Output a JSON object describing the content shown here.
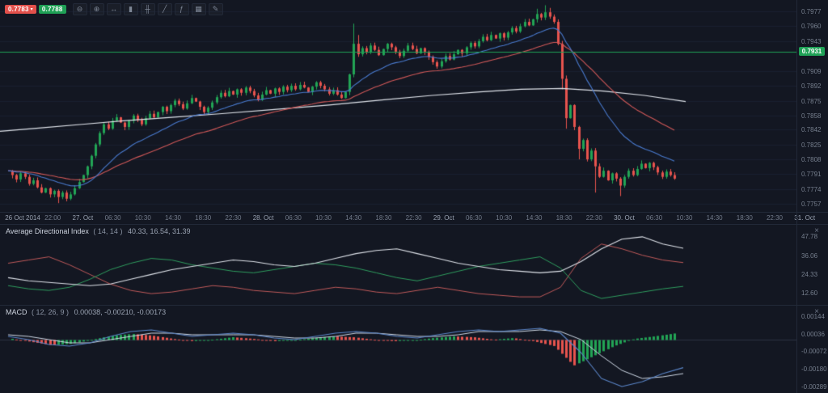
{
  "toolbar": {
    "sell_price": "0.7783",
    "sell_caret": "▾",
    "buy_price": "0.7788",
    "sell_color": "#e2504b",
    "buy_color": "#1fa055",
    "icons": [
      {
        "name": "zoom-out-icon",
        "glyph": "⊖"
      },
      {
        "name": "zoom-in-icon",
        "glyph": "⊕"
      },
      {
        "name": "pan-icon",
        "glyph": "↔"
      },
      {
        "name": "candlestick-chart-icon",
        "glyph": "▮"
      },
      {
        "name": "ohlc-bars-icon",
        "glyph": "╫"
      },
      {
        "name": "line-chart-icon",
        "glyph": "╱"
      },
      {
        "name": "indicators-icon",
        "glyph": "ƒ"
      },
      {
        "name": "grid-icon",
        "glyph": "▦"
      },
      {
        "name": "annotate-icon",
        "glyph": "✎"
      }
    ]
  },
  "price_axis": {
    "labels": [
      "0.7977",
      "0.7960",
      "0.7943",
      "0.7909",
      "0.7892",
      "0.7875",
      "0.7858",
      "0.7842",
      "0.7825",
      "0.7808",
      "0.7791",
      "0.7774",
      "0.7757"
    ],
    "active_line_label": "0.7931"
  },
  "time_axis": {
    "labels": [
      "26 Oct 2014",
      "22:00",
      "27. Oct",
      "06:30",
      "10:30",
      "14:30",
      "18:30",
      "22:30",
      "28. Oct",
      "06:30",
      "10:30",
      "14:30",
      "18:30",
      "22:30",
      "29. Oct",
      "06:30",
      "10:30",
      "14:30",
      "18:30",
      "22:30",
      "30. Oct",
      "06:30",
      "10:30",
      "14:30",
      "18:30",
      "22:30",
      "31. Oct"
    ],
    "day_label_indices": [
      0,
      2,
      8,
      14,
      20,
      26
    ]
  },
  "panels": {
    "adx": {
      "name": "Average Directional Index",
      "params": "( 14, 14 )",
      "values": "40.33, 16.54, 31.39",
      "close_label": "×"
    },
    "macd": {
      "name": "MACD",
      "params": "( 12, 26, 9 )",
      "values": "0.00038, -0.00210, -0.00173",
      "close_label": "×"
    }
  },
  "colors": {
    "bull": "#22a455",
    "bear": "#e8544e",
    "ma_fast": "#4a7bd0",
    "ma_slow": "#d05858",
    "ma_long": "#dfe3ea",
    "active_line": "#1fa257",
    "adx_line": "#dfe3ea",
    "di_plus": "#2f9e5f",
    "di_minus": "#c05a5a",
    "macd_line": "#5b86c9",
    "signal_line": "#cfd9e6",
    "grid": "#1a2130",
    "zero_line": "#2b3342"
  },
  "chart_data": [
    {
      "type": "candlestick",
      "ylim": [
        0.7748,
        0.799
      ],
      "active_price_line": 0.7931,
      "closes": [
        0.7795,
        0.779,
        0.7785,
        0.7792,
        0.7788,
        0.778,
        0.7784,
        0.7776,
        0.777,
        0.7775,
        0.7768,
        0.7772,
        0.7765,
        0.777,
        0.7763,
        0.7768,
        0.7775,
        0.7782,
        0.779,
        0.78,
        0.7812,
        0.7825,
        0.7838,
        0.7848,
        0.7843,
        0.7852,
        0.7856,
        0.785,
        0.7845,
        0.7852,
        0.7858,
        0.7853,
        0.7848,
        0.7855,
        0.786,
        0.7856,
        0.7862,
        0.7868,
        0.7863,
        0.787,
        0.7875,
        0.7871,
        0.7866,
        0.7872,
        0.7878,
        0.7874,
        0.7868,
        0.7862,
        0.7867,
        0.7873,
        0.7879,
        0.7884,
        0.788,
        0.7886,
        0.7882,
        0.7888,
        0.7884,
        0.789,
        0.7886,
        0.7881,
        0.7876,
        0.7882,
        0.7887,
        0.7883,
        0.7889,
        0.7885,
        0.7891,
        0.7887,
        0.7892,
        0.7888,
        0.7893,
        0.789,
        0.7885,
        0.7891,
        0.7896,
        0.7892,
        0.7888,
        0.7883,
        0.7887,
        0.7882,
        0.7878,
        0.7885,
        0.7905,
        0.794,
        0.7928,
        0.7935,
        0.793,
        0.7938,
        0.7933,
        0.7927,
        0.7934,
        0.794,
        0.7936,
        0.7931,
        0.7926,
        0.7932,
        0.7938,
        0.7934,
        0.7929,
        0.7935,
        0.7931,
        0.7925,
        0.7919,
        0.7914,
        0.792,
        0.7926,
        0.7922,
        0.7928,
        0.7933,
        0.7929,
        0.7936,
        0.7941,
        0.7937,
        0.7943,
        0.7948,
        0.7944,
        0.795,
        0.7946,
        0.7952,
        0.7947,
        0.7953,
        0.7958,
        0.7954,
        0.796,
        0.7965,
        0.7961,
        0.7968,
        0.7974,
        0.797,
        0.7976,
        0.7971,
        0.7965,
        0.794,
        0.79,
        0.7855,
        0.787,
        0.7845,
        0.782,
        0.783,
        0.7808,
        0.7818,
        0.78,
        0.7788,
        0.7795,
        0.7784,
        0.7792,
        0.7786,
        0.7778,
        0.7788,
        0.7795,
        0.779,
        0.7797,
        0.7803,
        0.7798,
        0.7804,
        0.7799,
        0.7793,
        0.7788,
        0.7794,
        0.779,
        0.7786
      ],
      "wick_overrides": {
        "12": {
          "low": 0.7758
        },
        "14": {
          "low": 0.776
        },
        "83": {
          "high": 0.7963
        },
        "84": {
          "high": 0.795
        },
        "127": {
          "high": 0.798
        },
        "129": {
          "high": 0.7984
        },
        "130": {
          "high": 0.7981
        },
        "133": {
          "low": 0.7888
        },
        "134": {
          "low": 0.7843
        },
        "137": {
          "low": 0.7808
        },
        "141": {
          "low": 0.777
        },
        "147": {
          "low": 0.7766
        }
      },
      "overlays": {
        "ema_fast_period": 20,
        "ema_slow_period": 45,
        "long_ma_points": [
          [
            0.0,
            0.784
          ],
          [
            0.06,
            0.7844
          ],
          [
            0.12,
            0.7848
          ],
          [
            0.18,
            0.7852
          ],
          [
            0.25,
            0.7856
          ],
          [
            0.32,
            0.786
          ],
          [
            0.4,
            0.7865
          ],
          [
            0.48,
            0.787
          ],
          [
            0.56,
            0.7876
          ],
          [
            0.63,
            0.7881
          ],
          [
            0.7,
            0.7885
          ],
          [
            0.76,
            0.7888
          ],
          [
            0.82,
            0.7889
          ],
          [
            0.88,
            0.7886
          ],
          [
            0.94,
            0.7881
          ],
          [
            1.0,
            0.7874
          ]
        ]
      }
    },
    {
      "type": "line",
      "title": "Average Directional Index ( 14, 14 )",
      "ylim": [
        5,
        55
      ],
      "axis_ticks": [
        47.78,
        36.06,
        24.33,
        12.6
      ],
      "series": [
        {
          "name": "ADX",
          "values": [
            22,
            20,
            19,
            18,
            17,
            18,
            21,
            24,
            27,
            29,
            31,
            33,
            32,
            30,
            29,
            31,
            34,
            37,
            39,
            40,
            37,
            34,
            31,
            29,
            27,
            26,
            25,
            26,
            32,
            40,
            46,
            47.5,
            43,
            40.33
          ]
        },
        {
          "name": "+DI",
          "values": [
            17,
            15,
            14,
            16,
            21,
            27,
            31,
            34,
            33,
            30,
            28,
            26,
            25,
            27,
            29,
            31,
            30,
            28,
            25,
            22,
            20,
            23,
            26,
            29,
            31,
            33,
            35,
            28,
            14,
            9,
            11,
            13,
            15,
            16.54
          ]
        },
        {
          "name": "-DI",
          "values": [
            31,
            33,
            35,
            30,
            24,
            18,
            14,
            12,
            13,
            15,
            17,
            16,
            14,
            13,
            12,
            14,
            16,
            15,
            13,
            12,
            14,
            16,
            14,
            12,
            11,
            10,
            10,
            16,
            34,
            43,
            40,
            36,
            33,
            31.39
          ]
        }
      ]
    },
    {
      "type": "macd",
      "title": "MACD ( 12, 26, 9 )",
      "ylim": [
        -0.0033,
        0.0021
      ],
      "axis_ticks": [
        0.00144,
        0.00036,
        -0.00072,
        -0.0018,
        -0.00289
      ],
      "macd": [
        0.0002,
        0,
        -0.0003,
        -0.0004,
        -0.0002,
        0.0002,
        0.0005,
        0.0006,
        0.0004,
        0.0002,
        0.0003,
        0.0004,
        0.0003,
        0.0001,
        0,
        0.0002,
        0.0004,
        0.0005,
        0.0004,
        0.0002,
        0.0001,
        0.0003,
        0.0005,
        0.0006,
        0.0005,
        0.0006,
        0.0007,
        0.0004,
        -0.0008,
        -0.0024,
        -0.0029,
        -0.0026,
        -0.0021,
        -0.00173
      ],
      "signal": [
        0.0003,
        0.0002,
        0,
        -0.0002,
        -0.0002,
        0,
        0.0002,
        0.0004,
        0.0004,
        0.0003,
        0.0003,
        0.0003,
        0.0003,
        0.0002,
        0.0001,
        0.0001,
        0.0002,
        0.0004,
        0.0004,
        0.0003,
        0.0002,
        0.0002,
        0.0003,
        0.0005,
        0.0005,
        0.0005,
        0.0006,
        0.0005,
        0,
        -0.001,
        -0.0019,
        -0.0024,
        -0.0023,
        -0.0021
      ],
      "histogram": [
        5e-05,
        -0.00015,
        -0.00035,
        -0.00025,
        0,
        0.00025,
        0.00035,
        0.00025,
        5e-05,
        -0.0001,
        0,
        0.00015,
        5e-05,
        -0.0001,
        -5e-05,
        0.0001,
        0.0002,
        0.00015,
        0,
        -0.0001,
        -5e-05,
        0.0001,
        0.0002,
        0.00015,
        0,
        0.0001,
        -0.0001,
        -0.0004,
        -0.0016,
        -0.001,
        -0.0004,
        5e-05,
        0.0002,
        0.00038
      ]
    }
  ]
}
